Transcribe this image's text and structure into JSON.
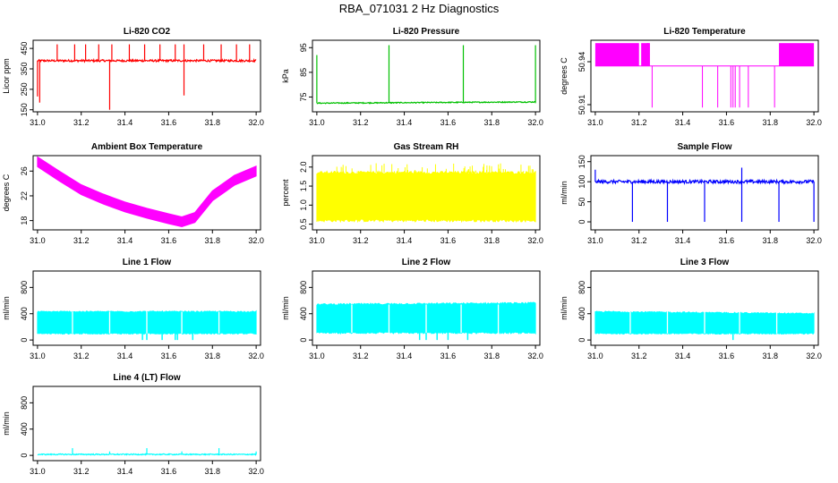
{
  "page_title": "RBA_071031  2 Hz Diagnostics",
  "chart_data": [
    {
      "id": "co2",
      "type": "line",
      "title": "Li-820 CO2",
      "xlabel": "",
      "ylabel": "Licor ppm",
      "xlim": [
        30.98,
        32.02
      ],
      "ylim": [
        140,
        490
      ],
      "xticks": [
        31.0,
        31.2,
        31.4,
        31.6,
        31.8,
        32.0
      ],
      "xtick_labels": [
        "31.0",
        "31.2",
        "31.4",
        "31.6",
        "31.8",
        "32.0"
      ],
      "yticks": [
        150,
        250,
        350,
        450
      ],
      "ytick_labels": [
        "150",
        "250",
        "350",
        "450"
      ],
      "color": "#ff0000",
      "series": [
        {
          "baseline": 390,
          "noise": 5,
          "spikes": [
            {
              "x": 31.0,
              "y": 215
            },
            {
              "x": 31.01,
              "y": 185
            },
            {
              "x": 31.09,
              "y": 470
            },
            {
              "x": 31.17,
              "y": 470
            },
            {
              "x": 31.22,
              "y": 470
            },
            {
              "x": 31.28,
              "y": 470
            },
            {
              "x": 31.34,
              "y": 470
            },
            {
              "x": 31.33,
              "y": 150
            },
            {
              "x": 31.42,
              "y": 470
            },
            {
              "x": 31.49,
              "y": 470
            },
            {
              "x": 31.56,
              "y": 470
            },
            {
              "x": 31.63,
              "y": 470
            },
            {
              "x": 31.67,
              "y": 470
            },
            {
              "x": 31.67,
              "y": 220
            },
            {
              "x": 31.76,
              "y": 470
            },
            {
              "x": 31.84,
              "y": 470
            },
            {
              "x": 31.91,
              "y": 470
            },
            {
              "x": 31.97,
              "y": 470
            }
          ]
        }
      ]
    },
    {
      "id": "pressure",
      "type": "line",
      "title": "Li-820 Pressure",
      "xlabel": "",
      "ylabel": "kPa",
      "xlim": [
        30.98,
        32.02
      ],
      "ylim": [
        69,
        98
      ],
      "xticks": [
        31.0,
        31.2,
        31.4,
        31.6,
        31.8,
        32.0
      ],
      "xtick_labels": [
        "31.0",
        "31.2",
        "31.4",
        "31.6",
        "31.8",
        "32.0"
      ],
      "yticks": [
        75,
        85,
        95
      ],
      "ytick_labels": [
        "75",
        "85",
        "95"
      ],
      "color": "#00c000",
      "series": [
        {
          "baseline": 72.5,
          "noise": 0.2,
          "drift": 0.5,
          "spikes": [
            {
              "x": 31.0,
              "y": 92
            },
            {
              "x": 31.33,
              "y": 96
            },
            {
              "x": 31.67,
              "y": 96
            },
            {
              "x": 32.0,
              "y": 96
            }
          ]
        }
      ]
    },
    {
      "id": "licor-temp",
      "type": "line",
      "title": "Li-820 Temperature",
      "xlabel": "",
      "ylabel": "degrees C",
      "xlim": [
        30.98,
        32.02
      ],
      "ylim": [
        50.905,
        50.955
      ],
      "xticks": [
        31.0,
        31.2,
        31.4,
        31.6,
        31.8,
        32.0
      ],
      "xtick_labels": [
        "31.0",
        "31.2",
        "31.4",
        "31.6",
        "31.8",
        "32.0"
      ],
      "yticks": [
        50.91,
        50.94
      ],
      "ytick_labels": [
        "50.91",
        "50.94"
      ],
      "color": "#ff00ff",
      "series": [
        {
          "levels": [
            50.937,
            50.953
          ],
          "low": 50.908,
          "dense_ranges": [
            [
              31.0,
              31.2
            ],
            [
              31.21,
              31.25
            ],
            [
              31.84,
              32.0
            ]
          ],
          "spikes": [
            31.26,
            31.49,
            31.56,
            31.62,
            31.63,
            31.64,
            31.66,
            31.7,
            31.82
          ]
        }
      ]
    },
    {
      "id": "box-temp",
      "type": "line",
      "title": "Ambient Box Temperature",
      "xlabel": "",
      "ylabel": "degrees C",
      "xlim": [
        30.98,
        32.02
      ],
      "ylim": [
        16.5,
        28.5
      ],
      "xticks": [
        31.0,
        31.2,
        31.4,
        31.6,
        31.8,
        32.0
      ],
      "xtick_labels": [
        "31.0",
        "31.2",
        "31.4",
        "31.6",
        "31.8",
        "32.0"
      ],
      "yticks": [
        18,
        22,
        26
      ],
      "ytick_labels": [
        "18",
        "22",
        "26"
      ],
      "color": "#ff00ff",
      "series": [
        {
          "x": [
            31.0,
            31.1,
            31.2,
            31.3,
            31.4,
            31.5,
            31.6,
            31.66,
            31.72,
            31.8,
            31.9,
            32.0
          ],
          "y": [
            27.5,
            25.2,
            23.0,
            21.5,
            20.2,
            19.2,
            18.3,
            17.8,
            18.5,
            22.0,
            24.5,
            26.0
          ],
          "band": 0.8
        }
      ]
    },
    {
      "id": "rh",
      "type": "line",
      "title": "Gas Stream RH",
      "xlabel": "",
      "ylabel": "percent",
      "xlim": [
        30.98,
        32.02
      ],
      "ylim": [
        0.35,
        2.3
      ],
      "xticks": [
        31.0,
        31.2,
        31.4,
        31.6,
        31.8,
        32.0
      ],
      "xtick_labels": [
        "31.0",
        "31.2",
        "31.4",
        "31.6",
        "31.8",
        "32.0"
      ],
      "yticks": [
        0.5,
        1.0,
        1.5,
        2.0
      ],
      "ytick_labels": [
        "0.5",
        "1.0",
        "1.5",
        "2.0"
      ],
      "color": "#ffff00",
      "series": [
        {
          "low": 0.6,
          "high": 1.85,
          "max": 2.1
        }
      ]
    },
    {
      "id": "sample-flow",
      "type": "line",
      "title": "Sample Flow",
      "xlabel": "",
      "ylabel": "ml/min",
      "xlim": [
        30.98,
        32.02
      ],
      "ylim": [
        -20,
        165
      ],
      "xticks": [
        31.0,
        31.2,
        31.4,
        31.6,
        31.8,
        32.0
      ],
      "xtick_labels": [
        "31.0",
        "31.2",
        "31.4",
        "31.6",
        "31.8",
        "32.0"
      ],
      "yticks": [
        0,
        50,
        100,
        150
      ],
      "ytick_labels": [
        "0",
        "50",
        "100",
        "150"
      ],
      "color": "#0000ff",
      "series": [
        {
          "baseline": 100,
          "noise": 4,
          "spikes": [
            {
              "x": 31.0,
              "y": 130
            },
            {
              "x": 31.17,
              "y": 0
            },
            {
              "x": 31.33,
              "y": 0
            },
            {
              "x": 31.5,
              "y": 0
            },
            {
              "x": 31.67,
              "y": 0
            },
            {
              "x": 31.67,
              "y": 135
            },
            {
              "x": 31.84,
              "y": 0
            },
            {
              "x": 32.0,
              "y": 0
            }
          ]
        }
      ]
    },
    {
      "id": "line1",
      "type": "line",
      "title": "Line 1 Flow",
      "xlabel": "",
      "ylabel": "ml/min",
      "xlim": [
        30.98,
        32.02
      ],
      "ylim": [
        -80,
        1050
      ],
      "xticks": [
        31.0,
        31.2,
        31.4,
        31.6,
        31.8,
        32.0
      ],
      "xtick_labels": [
        "31.0",
        "31.2",
        "31.4",
        "31.6",
        "31.8",
        "32.0"
      ],
      "yticks": [
        0,
        400,
        800
      ],
      "ytick_labels": [
        "0",
        "400",
        "800"
      ],
      "color": "#00ffff",
      "series": [
        {
          "low": 100,
          "high": 430,
          "gaps": [
            31.16,
            31.33,
            31.5,
            31.66,
            31.83
          ],
          "dips": [
            31.48,
            31.5,
            31.57,
            31.63,
            31.64,
            31.71
          ]
        }
      ]
    },
    {
      "id": "line2",
      "type": "line",
      "title": "Line 2 Flow",
      "xlabel": "",
      "ylabel": "ml/min",
      "xlim": [
        30.98,
        32.02
      ],
      "ylim": [
        -80,
        1050
      ],
      "xticks": [
        31.0,
        31.2,
        31.4,
        31.6,
        31.8,
        32.0
      ],
      "xtick_labels": [
        "31.0",
        "31.2",
        "31.4",
        "31.6",
        "31.8",
        "32.0"
      ],
      "yticks": [
        0,
        400,
        800
      ],
      "ytick_labels": [
        "0",
        "400",
        "800"
      ],
      "color": "#00ffff",
      "series": [
        {
          "low": 110,
          "high": 540,
          "high_end": 560,
          "gaps": [
            31.16,
            31.33,
            31.5,
            31.66,
            31.83
          ],
          "dips": [
            31.47,
            31.5,
            31.55,
            31.6,
            31.69
          ]
        }
      ]
    },
    {
      "id": "line3",
      "type": "line",
      "title": "Line 3 Flow",
      "xlabel": "",
      "ylabel": "ml/min",
      "xlim": [
        30.98,
        32.02
      ],
      "ylim": [
        -80,
        1050
      ],
      "xticks": [
        31.0,
        31.2,
        31.4,
        31.6,
        31.8,
        32.0
      ],
      "xtick_labels": [
        "31.0",
        "31.2",
        "31.4",
        "31.6",
        "31.8",
        "32.0"
      ],
      "yticks": [
        0,
        400,
        800
      ],
      "ytick_labels": [
        "0",
        "400",
        "800"
      ],
      "color": "#00ffff",
      "series": [
        {
          "low": 100,
          "high": 430,
          "high_end": 400,
          "gaps": [
            31.16,
            31.33,
            31.5,
            31.66,
            31.83
          ],
          "dips": [
            31.63
          ]
        }
      ]
    },
    {
      "id": "line4",
      "type": "line",
      "title": "Line 4 (LT) Flow",
      "xlabel": "",
      "ylabel": "ml/min",
      "xlim": [
        30.98,
        32.02
      ],
      "ylim": [
        -80,
        1050
      ],
      "xticks": [
        31.0,
        31.2,
        31.4,
        31.6,
        31.8,
        32.0
      ],
      "xtick_labels": [
        "31.0",
        "31.2",
        "31.4",
        "31.6",
        "31.8",
        "32.0"
      ],
      "yticks": [
        0,
        400,
        800
      ],
      "ytick_labels": [
        "0",
        "400",
        "800"
      ],
      "color": "#00ffff",
      "series": [
        {
          "baseline": 15,
          "noise": 8,
          "spikes": [
            {
              "x": 31.16,
              "y": 110
            },
            {
              "x": 31.33,
              "y": 60
            },
            {
              "x": 31.5,
              "y": 110
            },
            {
              "x": 31.66,
              "y": 60
            },
            {
              "x": 31.83,
              "y": 110
            },
            {
              "x": 32.0,
              "y": 60
            }
          ]
        }
      ]
    }
  ]
}
